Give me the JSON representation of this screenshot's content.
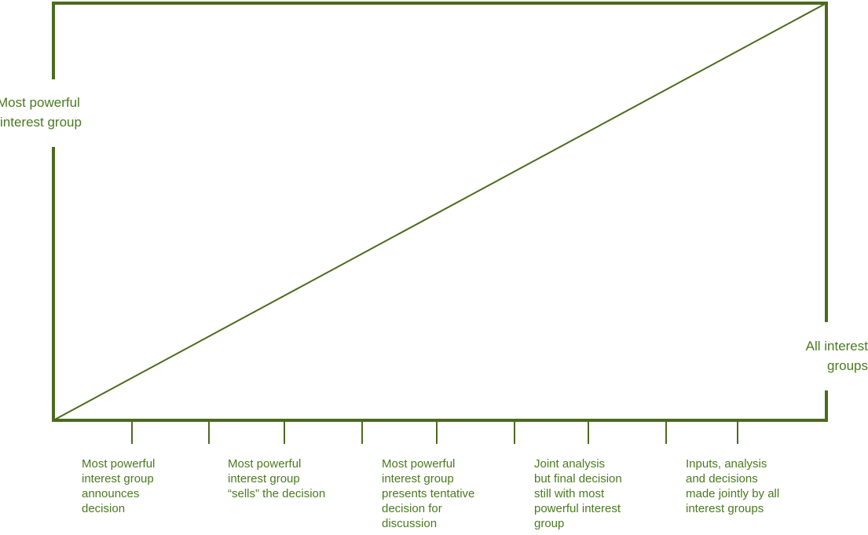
{
  "colors": {
    "line": "#4b6b1e",
    "text": "#4a7a1e"
  },
  "left_label": "Most powerful\ninterest group",
  "right_label": "All interest\ngroups",
  "categories": [
    "Most powerful\ninterest group\nannounces\ndecision",
    "Most powerful\ninterest group\n“sells” the decision",
    "Most powerful\ninterest group\npresents tentative\ndecision for\ndiscussion",
    "Joint analysis\nbut final decision\nstill with most\npowerful interest\ngroup",
    "Inputs, analysis\nand decisions\nmade jointly by all\ninterest groups"
  ]
}
